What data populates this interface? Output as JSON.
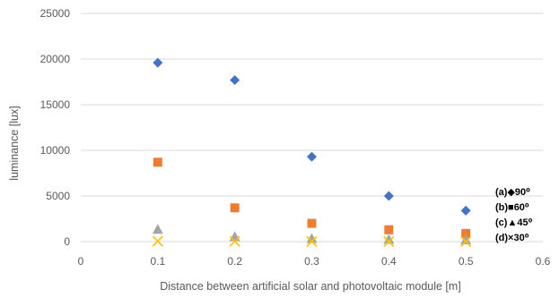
{
  "chart_data": {
    "type": "scatter",
    "title": "",
    "xlabel": "Distance between artificial solar and photovoltaic module [m]",
    "ylabel": "luminance [lux]",
    "xlim": [
      0,
      0.6
    ],
    "ylim": [
      0,
      25000
    ],
    "x_ticks": [
      "0",
      "0.1",
      "0.2",
      "0.3",
      "0.4",
      "0.5",
      "0.6"
    ],
    "y_ticks": [
      "0",
      "5000",
      "10000",
      "15000",
      "20000",
      "25000"
    ],
    "grid": "horizontal",
    "legend_position": "right",
    "series": [
      {
        "name": "(a)◆90⁰",
        "marker": "diamond",
        "color": "#4472C4",
        "x": [
          0.1,
          0.2,
          0.3,
          0.4,
          0.5
        ],
        "y": [
          19600,
          17700,
          9300,
          5000,
          3400
        ]
      },
      {
        "name": "(b)■60⁰",
        "marker": "square",
        "color": "#ED7D31",
        "x": [
          0.1,
          0.2,
          0.3,
          0.4,
          0.5
        ],
        "y": [
          8700,
          3700,
          2000,
          1300,
          900
        ]
      },
      {
        "name": "(c)▲45⁰",
        "marker": "triangle",
        "color": "#A5A5A5",
        "x": [
          0.1,
          0.2,
          0.3,
          0.4,
          0.5
        ],
        "y": [
          1300,
          500,
          300,
          200,
          150
        ]
      },
      {
        "name": "(d)×30⁰",
        "marker": "x",
        "color": "#FFC000",
        "x": [
          0.1,
          0.2,
          0.3,
          0.4,
          0.5
        ],
        "y": [
          50,
          30,
          20,
          10,
          5
        ]
      }
    ]
  }
}
